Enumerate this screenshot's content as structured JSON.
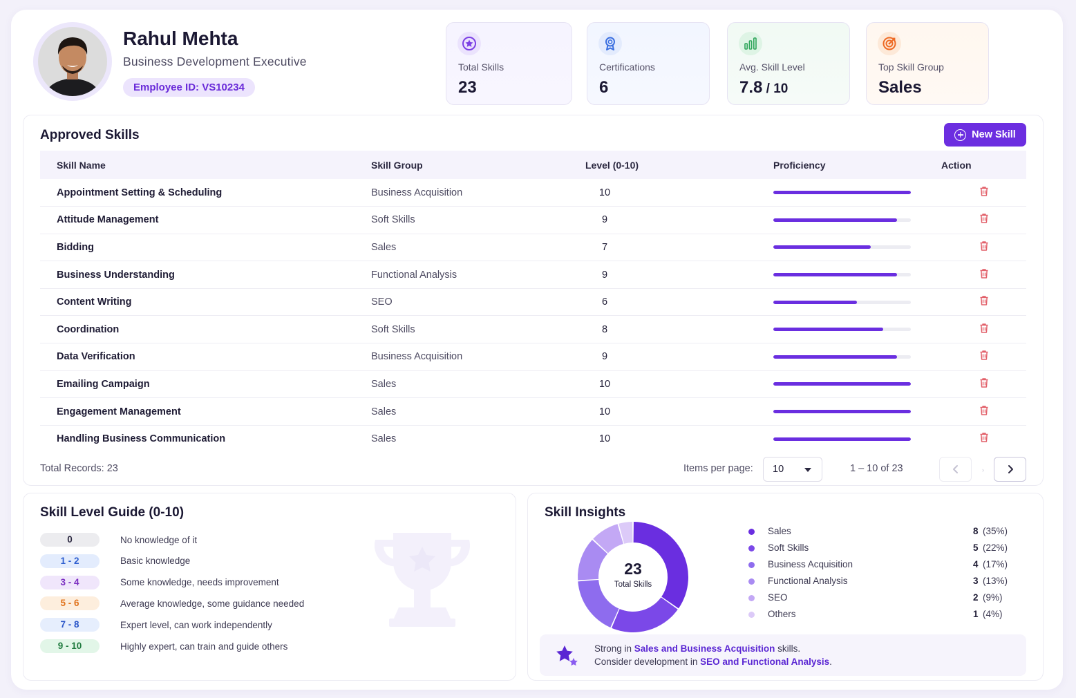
{
  "profile": {
    "name": "Rahul Mehta",
    "role": "Business Development Executive",
    "employee_id": "Employee ID: VS10234"
  },
  "stats": [
    {
      "label": "Total Skills",
      "value": "23",
      "suffix": "",
      "icon": "star-badge-icon",
      "color": "#7b3fe4"
    },
    {
      "label": "Certifications",
      "value": "6",
      "suffix": "",
      "icon": "award-ribbon-icon",
      "color": "#3b6fe0"
    },
    {
      "label": "Avg. Skill Level",
      "value": "7.8",
      "suffix": " / 10",
      "icon": "bar-chart-icon",
      "color": "#2ea55a"
    },
    {
      "label": "Top Skill Group",
      "value": "Sales",
      "suffix": "",
      "icon": "target-icon",
      "color": "#ee6a24"
    }
  ],
  "approved_skills": {
    "title": "Approved Skills",
    "new_button": "New Skill",
    "columns": [
      "Skill Name",
      "Skill Group",
      "Level (0-10)",
      "Proficiency",
      "Action"
    ],
    "rows": [
      {
        "name": "Appointment Setting & Scheduling",
        "group": "Business Acquisition",
        "level": "10",
        "proficiency": 1.0
      },
      {
        "name": "Attitude Management",
        "group": "Soft Skills",
        "level": "9",
        "proficiency": 0.9
      },
      {
        "name": "Bidding",
        "group": "Sales",
        "level": "7",
        "proficiency": 0.71
      },
      {
        "name": "Business Understanding",
        "group": "Functional Analysis",
        "level": "9",
        "proficiency": 0.9
      },
      {
        "name": "Content Writing",
        "group": "SEO",
        "level": "6",
        "proficiency": 0.61
      },
      {
        "name": "Coordination",
        "group": "Soft Skills",
        "level": "8",
        "proficiency": 0.8
      },
      {
        "name": "Data Verification",
        "group": "Business Acquisition",
        "level": "9",
        "proficiency": 0.9
      },
      {
        "name": "Emailing Campaign",
        "group": "Sales",
        "level": "10",
        "proficiency": 1.0
      },
      {
        "name": "Engagement Management",
        "group": "Sales",
        "level": "10",
        "proficiency": 1.0
      },
      {
        "name": "Handling Business Communication",
        "group": "Sales",
        "level": "10",
        "proficiency": 1.0
      }
    ],
    "total_records": "Total Records: 23",
    "items_per_page_label": "Items per page:",
    "items_per_page": "10",
    "range": "1 – 10 of 23"
  },
  "guide": {
    "title": "Skill Level Guide (0-10)",
    "items": [
      {
        "range": "0",
        "desc": "No knowledge of it",
        "bg": "#ececef",
        "fg": "#2b2840"
      },
      {
        "range": "1 - 2",
        "desc": "Basic knowledge",
        "bg": "#e3ecfd",
        "fg": "#2f5fd0"
      },
      {
        "range": "3 - 4",
        "desc": "Some knowledge, needs improvement",
        "bg": "#f0e6fb",
        "fg": "#7a2cc0"
      },
      {
        "range": "5 - 6",
        "desc": "Average knowledge, some guidance needed",
        "bg": "#fdeedd",
        "fg": "#e0731c"
      },
      {
        "range": "7 - 8",
        "desc": "Expert level, can work independently",
        "bg": "#e6eefd",
        "fg": "#2a55c8"
      },
      {
        "range": "9 - 10",
        "desc": "Highly expert, can train and guide others",
        "bg": "#e2f6e8",
        "fg": "#1f7a3e"
      }
    ]
  },
  "insights": {
    "title": "Skill Insights",
    "total": "23",
    "total_label": "Total Skills",
    "legend": [
      {
        "name": "Sales",
        "count": "8",
        "pct": "(35%)",
        "value": 8,
        "color": "#6a2ee0"
      },
      {
        "name": "Soft Skills",
        "count": "5",
        "pct": "(22%)",
        "value": 5,
        "color": "#7b48e8"
      },
      {
        "name": "Business Acquisition",
        "count": "4",
        "pct": "(17%)",
        "value": 4,
        "color": "#8e6cee"
      },
      {
        "name": "Functional Analysis",
        "count": "3",
        "pct": "(13%)",
        "value": 3,
        "color": "#a98bf2"
      },
      {
        "name": "SEO",
        "count": "2",
        "pct": "(9%)",
        "value": 2,
        "color": "#c3a8f5"
      },
      {
        "name": "Others",
        "count": "1",
        "pct": "(4%)",
        "value": 1,
        "color": "#dccaf8"
      }
    ],
    "note_line1": {
      "pre": "Strong in ",
      "hl": "Sales and Business Acquisition",
      "post": " skills."
    },
    "note_line2": {
      "pre": "Consider development in ",
      "hl": "SEO and Functional Analysis",
      "post": "."
    }
  }
}
